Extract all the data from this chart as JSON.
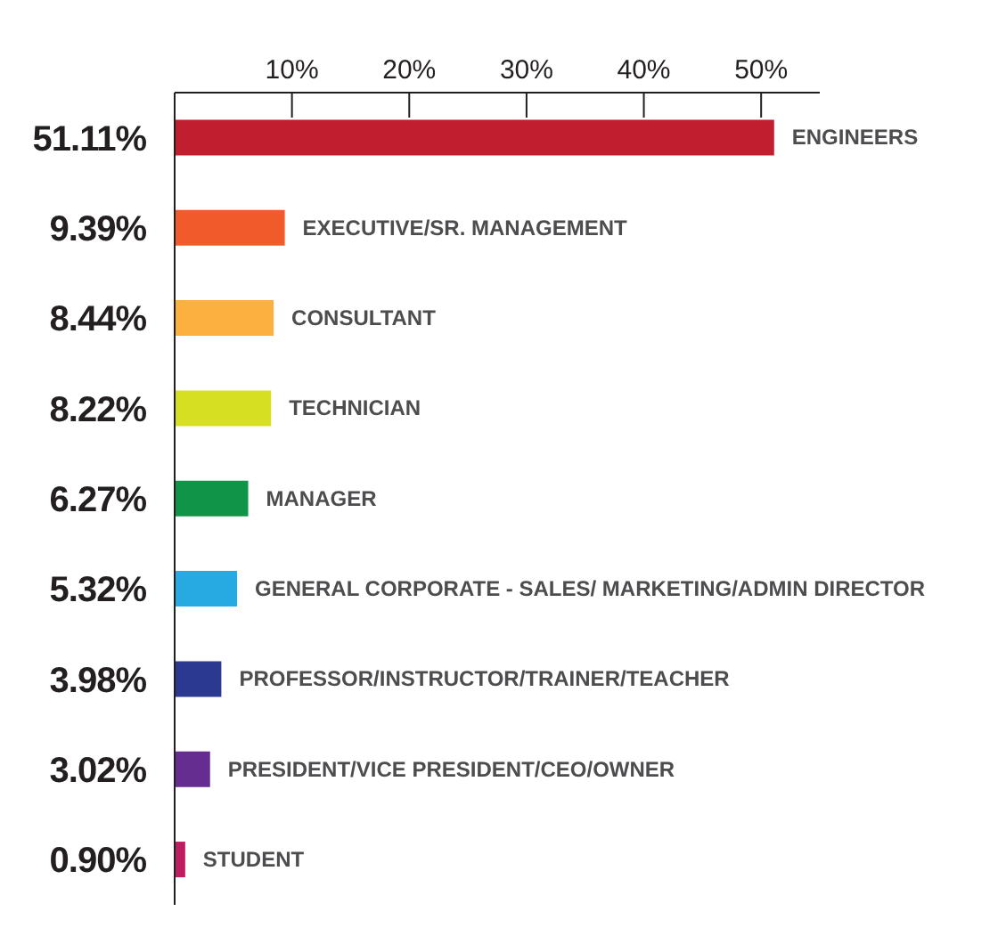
{
  "chart_data": {
    "type": "bar",
    "orientation": "horizontal",
    "categories": [
      "ENGINEERS",
      "EXECUTIVE/SR. MANAGEMENT",
      "CONSULTANT",
      "TECHNICIAN",
      "MANAGER",
      "GENERAL CORPORATE - SALES/ MARKETING/ADMIN DIRECTOR",
      "PROFESSOR/INSTRUCTOR/TRAINER/TEACHER",
      "PRESIDENT/VICE PRESIDENT/CEO/OWNER",
      "STUDENT"
    ],
    "values": [
      51.11,
      9.39,
      8.44,
      8.22,
      6.27,
      5.32,
      3.98,
      3.02,
      0.9
    ],
    "colors": [
      "#c11f2f",
      "#f15a2b",
      "#fbb040",
      "#d7df23",
      "#109447",
      "#27aae1",
      "#2b3990",
      "#662d91",
      "#be1e5f"
    ],
    "value_labels": [
      "51.11%",
      "9.39%",
      "8.44%",
      "8.22%",
      "6.27%",
      "5.32%",
      "3.98%",
      "3.02%",
      "0.90%"
    ],
    "xlim": [
      0,
      55
    ],
    "xticks": [
      {
        "value": 10,
        "label": "10%"
      },
      {
        "value": 20,
        "label": "20%"
      },
      {
        "value": 30,
        "label": "30%"
      },
      {
        "value": 40,
        "label": "40%"
      },
      {
        "value": 50,
        "label": "50%"
      }
    ],
    "grid": false,
    "legend": false
  }
}
